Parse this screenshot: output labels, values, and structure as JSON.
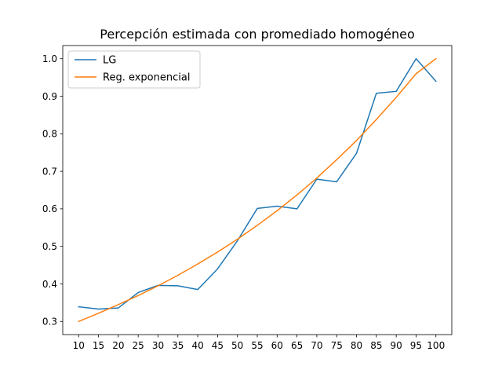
{
  "chart_data": {
    "type": "line",
    "title": "Percepción estimada con promediado homogéneo",
    "xlabel": "",
    "ylabel": "",
    "x": [
      10,
      15,
      20,
      25,
      30,
      35,
      40,
      45,
      50,
      55,
      60,
      65,
      70,
      75,
      80,
      85,
      90,
      95,
      100
    ],
    "x_tick_labels": [
      "10",
      "15",
      "20",
      "25",
      "30",
      "35",
      "40",
      "45",
      "50",
      "55",
      "60",
      "65",
      "70",
      "75",
      "80",
      "85",
      "90",
      "95",
      "100"
    ],
    "y_tick_values": [
      0.3,
      0.4,
      0.5,
      0.6,
      0.7,
      0.8,
      0.9,
      1.0
    ],
    "y_tick_labels": [
      "0.3",
      "0.4",
      "0.5",
      "0.6",
      "0.7",
      "0.8",
      "0.9",
      "1.0"
    ],
    "xlim": [
      6,
      104
    ],
    "ylim": [
      0.265,
      1.035
    ],
    "grid": false,
    "legend_position": "top-left",
    "series": [
      {
        "name": "LG",
        "color": "#1f77b4",
        "values": [
          0.339,
          0.333,
          0.336,
          0.377,
          0.396,
          0.395,
          0.385,
          0.44,
          0.515,
          0.601,
          0.607,
          0.6,
          0.679,
          0.672,
          0.748,
          0.908,
          0.913,
          1.0,
          0.94
        ]
      },
      {
        "name": "Reg. exponencial",
        "color": "#ff7f0e",
        "values": [
          0.3,
          0.322,
          0.345,
          0.369,
          0.395,
          0.423,
          0.453,
          0.485,
          0.519,
          0.556,
          0.595,
          0.637,
          0.682,
          0.731,
          0.782,
          0.838,
          0.897,
          0.96,
          1.0
        ]
      }
    ]
  }
}
